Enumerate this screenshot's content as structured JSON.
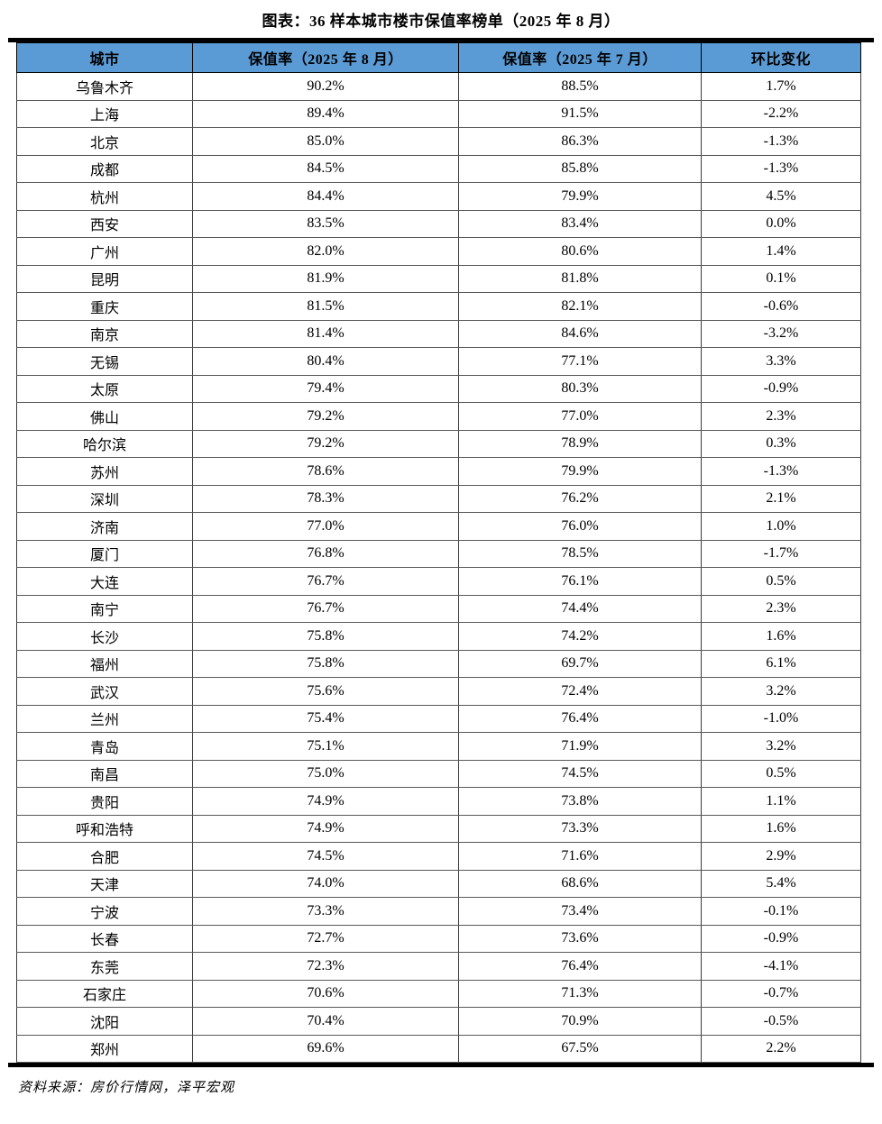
{
  "chart_data": {
    "type": "table",
    "title": "图表：36 样本城市楼市保值率榜单（2025 年 8 月）",
    "columns": [
      "城市",
      "保值率（2025 年 8 月）",
      "保值率（2025 年 7 月）",
      "环比变化"
    ],
    "rows": [
      [
        "乌鲁木齐",
        "90.2%",
        "88.5%",
        "1.7%"
      ],
      [
        "上海",
        "89.4%",
        "91.5%",
        "-2.2%"
      ],
      [
        "北京",
        "85.0%",
        "86.3%",
        "-1.3%"
      ],
      [
        "成都",
        "84.5%",
        "85.8%",
        "-1.3%"
      ],
      [
        "杭州",
        "84.4%",
        "79.9%",
        "4.5%"
      ],
      [
        "西安",
        "83.5%",
        "83.4%",
        "0.0%"
      ],
      [
        "广州",
        "82.0%",
        "80.6%",
        "1.4%"
      ],
      [
        "昆明",
        "81.9%",
        "81.8%",
        "0.1%"
      ],
      [
        "重庆",
        "81.5%",
        "82.1%",
        "-0.6%"
      ],
      [
        "南京",
        "81.4%",
        "84.6%",
        "-3.2%"
      ],
      [
        "无锡",
        "80.4%",
        "77.1%",
        "3.3%"
      ],
      [
        "太原",
        "79.4%",
        "80.3%",
        "-0.9%"
      ],
      [
        "佛山",
        "79.2%",
        "77.0%",
        "2.3%"
      ],
      [
        "哈尔滨",
        "79.2%",
        "78.9%",
        "0.3%"
      ],
      [
        "苏州",
        "78.6%",
        "79.9%",
        "-1.3%"
      ],
      [
        "深圳",
        "78.3%",
        "76.2%",
        "2.1%"
      ],
      [
        "济南",
        "77.0%",
        "76.0%",
        "1.0%"
      ],
      [
        "厦门",
        "76.8%",
        "78.5%",
        "-1.7%"
      ],
      [
        "大连",
        "76.7%",
        "76.1%",
        "0.5%"
      ],
      [
        "南宁",
        "76.7%",
        "74.4%",
        "2.3%"
      ],
      [
        "长沙",
        "75.8%",
        "74.2%",
        "1.6%"
      ],
      [
        "福州",
        "75.8%",
        "69.7%",
        "6.1%"
      ],
      [
        "武汉",
        "75.6%",
        "72.4%",
        "3.2%"
      ],
      [
        "兰州",
        "75.4%",
        "76.4%",
        "-1.0%"
      ],
      [
        "青岛",
        "75.1%",
        "71.9%",
        "3.2%"
      ],
      [
        "南昌",
        "75.0%",
        "74.5%",
        "0.5%"
      ],
      [
        "贵阳",
        "74.9%",
        "73.8%",
        "1.1%"
      ],
      [
        "呼和浩特",
        "74.9%",
        "73.3%",
        "1.6%"
      ],
      [
        "合肥",
        "74.5%",
        "71.6%",
        "2.9%"
      ],
      [
        "天津",
        "74.0%",
        "68.6%",
        "5.4%"
      ],
      [
        "宁波",
        "73.3%",
        "73.4%",
        "-0.1%"
      ],
      [
        "长春",
        "72.7%",
        "73.6%",
        "-0.9%"
      ],
      [
        "东莞",
        "72.3%",
        "76.4%",
        "-4.1%"
      ],
      [
        "石家庄",
        "70.6%",
        "71.3%",
        "-0.7%"
      ],
      [
        "沈阳",
        "70.4%",
        "70.9%",
        "-0.5%"
      ],
      [
        "郑州",
        "69.6%",
        "67.5%",
        "2.2%"
      ]
    ],
    "layout": {
      "header_bg": "#5B9BD5",
      "header_text_color": "#000000",
      "rule_color": "#000000",
      "grid_on": true
    }
  },
  "source": {
    "label": "资料来源：",
    "text": "房价行情网，泽平宏观"
  }
}
